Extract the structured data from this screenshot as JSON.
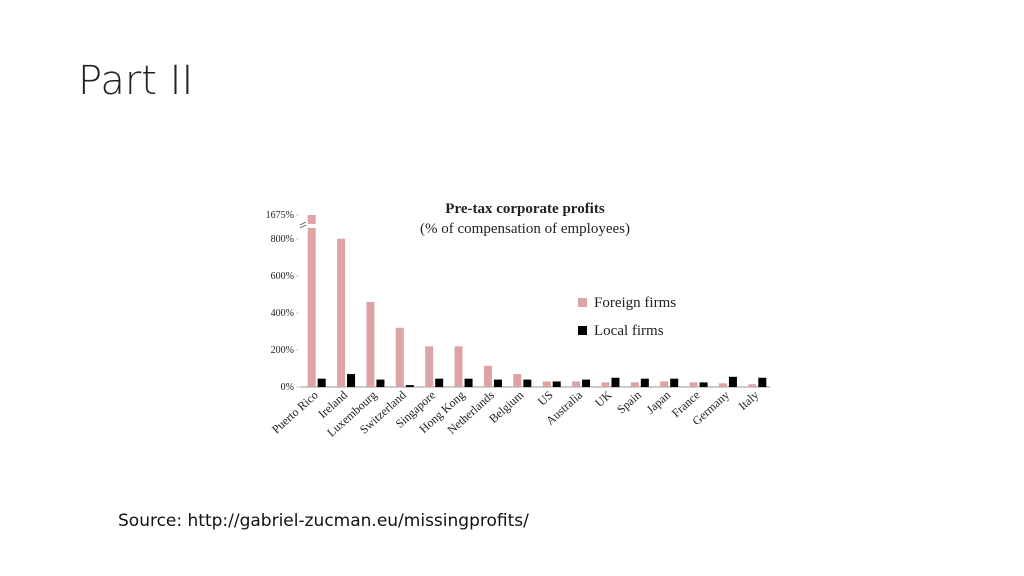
{
  "slide": {
    "title": "Part II",
    "source": "Source: http://gabriel-zucman.eu/missingprofits/"
  },
  "chart_data": {
    "type": "bar",
    "title": "Pre-tax corporate profits",
    "subtitle": "(% of compensation of employees)",
    "categories": [
      "Puerto Rico",
      "Ireland",
      "Luxembourg",
      "Switzerland",
      "Singapore",
      "Hong Kong",
      "Netherlands",
      "Belgium",
      "US",
      "Australia",
      "UK",
      "Spain",
      "Japan",
      "France",
      "Germany",
      "Italy"
    ],
    "series": [
      {
        "name": "Foreign firms",
        "color": "#dca4a4",
        "values": [
          1675,
          810,
          460,
          320,
          220,
          220,
          115,
          70,
          30,
          30,
          25,
          25,
          30,
          25,
          20,
          15
        ]
      },
      {
        "name": "Local firms",
        "color": "#000000",
        "values": [
          45,
          70,
          40,
          10,
          45,
          45,
          40,
          40,
          30,
          40,
          50,
          45,
          45,
          25,
          55,
          50
        ]
      }
    ],
    "ylim": [
      0,
      1675
    ],
    "yticks": [
      {
        "value": 0,
        "label": "0%"
      },
      {
        "value": 200,
        "label": "200%"
      },
      {
        "value": 400,
        "label": "400%"
      },
      {
        "value": 600,
        "label": "600%"
      },
      {
        "value": 800,
        "label": "800%"
      },
      {
        "value": 1675,
        "label": "1675%"
      }
    ],
    "axis_break": true,
    "legend": "right"
  }
}
